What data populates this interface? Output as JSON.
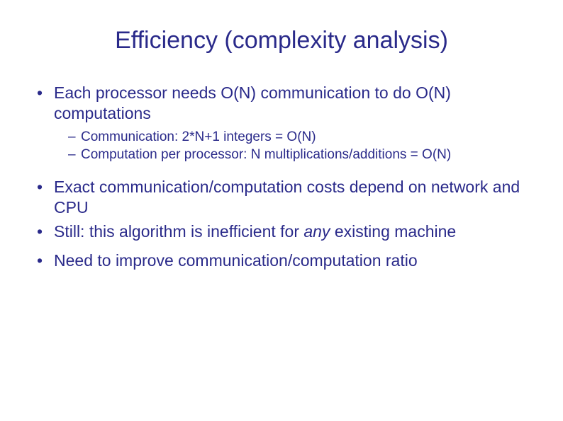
{
  "colors": {
    "title": "#2a2a8a",
    "body": "#2a2a8a",
    "bullet": "#2a2a8a",
    "background": "#ffffff"
  },
  "title": "Efficiency (complexity analysis)",
  "bullet_char": "•",
  "dash_char": "–",
  "items": [
    {
      "text": "Each processor needs O(N) communication to do O(N) computations",
      "sub": [
        "Communication:  2*N+1 integers = O(N)",
        "Computation per processor: N multiplications/additions = O(N)"
      ]
    },
    {
      "text": "Exact communication/computation costs depend on network and CPU"
    },
    {
      "text_pre": "Still: this algorithm is inefficient for ",
      "text_italic": "any",
      "text_post": " existing machine"
    },
    {
      "text": "Need to improve communication/computation ratio",
      "spacer_before": true
    }
  ]
}
